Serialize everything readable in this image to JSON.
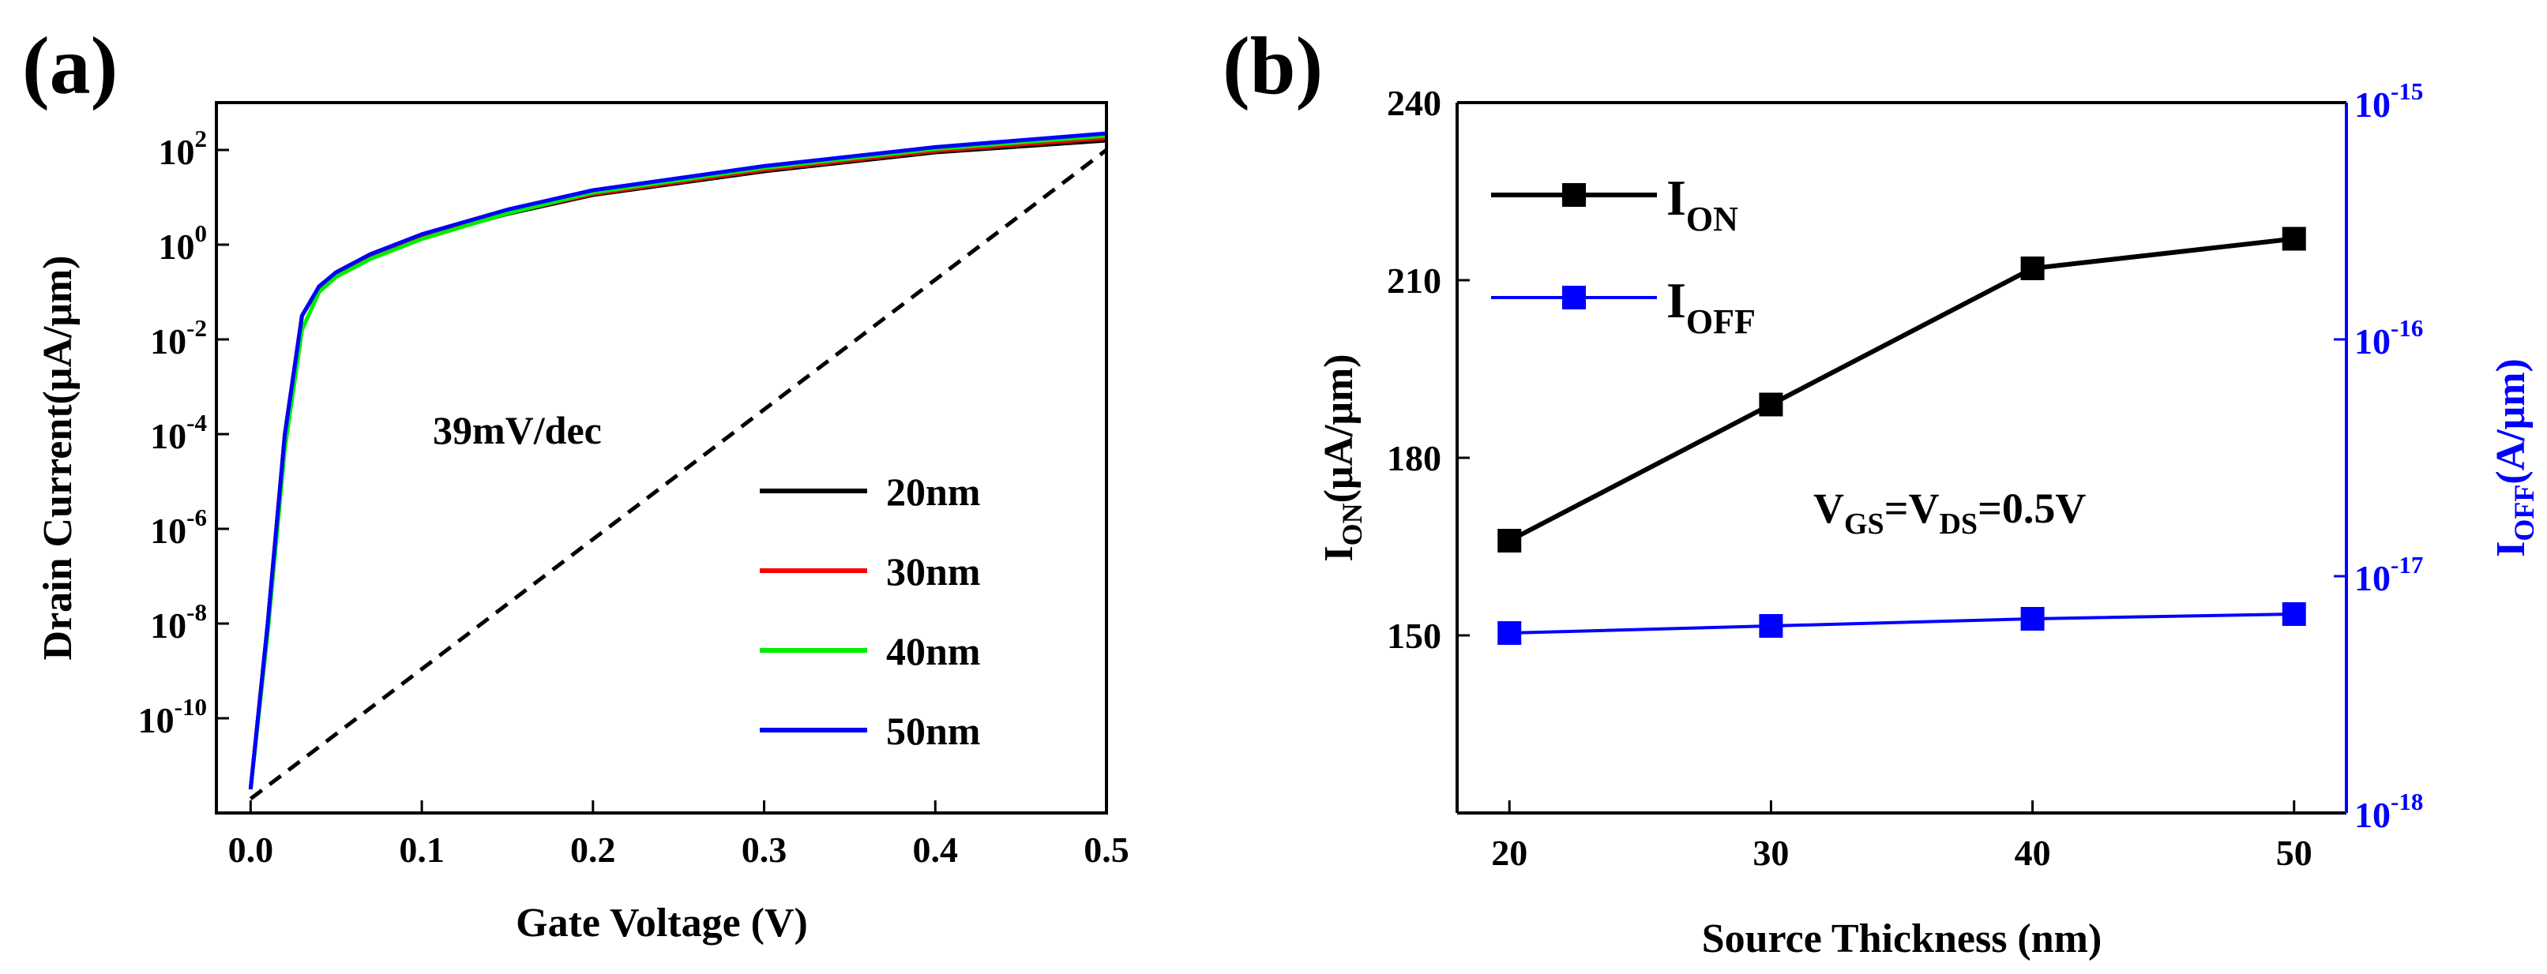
{
  "chart_data": [
    {
      "panel_label": "(a)",
      "type": "line",
      "title": "",
      "xlabel": "Gate Voltage (V)",
      "ylabel": "Drain Current(μA/μm)",
      "y_scale": "log",
      "xlim": [
        -0.02,
        0.5
      ],
      "ylim_log10": [
        -12,
        3
      ],
      "xticks": [
        {
          "value": 0.0,
          "label": "0.0"
        },
        {
          "value": 0.1,
          "label": "0.1"
        },
        {
          "value": 0.2,
          "label": "0.2"
        },
        {
          "value": 0.3,
          "label": "0.3"
        },
        {
          "value": 0.4,
          "label": "0.4"
        },
        {
          "value": 0.5,
          "label": "0.5"
        }
      ],
      "yticks": [
        {
          "exp": 2,
          "base": "10",
          "sup": "2"
        },
        {
          "exp": 0,
          "base": "10",
          "sup": "0"
        },
        {
          "exp": -2,
          "base": "10",
          "sup": "-2"
        },
        {
          "exp": -4,
          "base": "10",
          "sup": "-4"
        },
        {
          "exp": -6,
          "base": "10",
          "sup": "-6"
        },
        {
          "exp": -8,
          "base": "10",
          "sup": "-8"
        },
        {
          "exp": -10,
          "base": "10",
          "sup": "-10"
        }
      ],
      "annotation": "39mV/dec",
      "reference_line": {
        "style": "dashed",
        "x": [
          0.0,
          0.5
        ],
        "log10_y": [
          -11.7,
          2.0
        ]
      },
      "legend_position": "center-right",
      "series": [
        {
          "name": "20nm",
          "color": "#000000",
          "x": [
            0.0,
            0.01,
            0.02,
            0.03,
            0.04,
            0.05,
            0.07,
            0.1,
            0.15,
            0.2,
            0.3,
            0.4,
            0.5
          ],
          "log10_y": [
            -11.5,
            -8.0,
            -4.0,
            -1.5,
            -0.9,
            -0.6,
            -0.25,
            0.15,
            0.65,
            1.05,
            1.55,
            1.95,
            2.2
          ]
        },
        {
          "name": "30nm",
          "color": "#ff0000",
          "x": [
            0.0,
            0.01,
            0.02,
            0.03,
            0.04,
            0.05,
            0.07,
            0.1,
            0.15,
            0.2,
            0.3,
            0.4,
            0.5
          ],
          "log10_y": [
            -11.5,
            -8.0,
            -4.0,
            -1.5,
            -0.9,
            -0.6,
            -0.25,
            0.17,
            0.67,
            1.07,
            1.58,
            1.98,
            2.25
          ]
        },
        {
          "name": "40nm",
          "color": "#00ee00",
          "x": [
            0.0,
            0.01,
            0.02,
            0.03,
            0.04,
            0.05,
            0.07,
            0.1,
            0.15,
            0.2,
            0.3,
            0.4,
            0.5
          ],
          "log10_y": [
            -11.5,
            -8.2,
            -4.3,
            -1.8,
            -1.0,
            -0.68,
            -0.3,
            0.12,
            0.66,
            1.1,
            1.62,
            2.02,
            2.3
          ]
        },
        {
          "name": "50nm",
          "color": "#0000ff",
          "x": [
            0.0,
            0.01,
            0.02,
            0.03,
            0.04,
            0.05,
            0.07,
            0.1,
            0.15,
            0.2,
            0.3,
            0.4,
            0.5
          ],
          "log10_y": [
            -11.5,
            -8.0,
            -4.0,
            -1.5,
            -0.88,
            -0.58,
            -0.2,
            0.22,
            0.74,
            1.15,
            1.66,
            2.06,
            2.35
          ]
        }
      ]
    },
    {
      "panel_label": "(b)",
      "type": "line",
      "title": "",
      "xlabel": "Source Thickness (nm)",
      "x": [
        20,
        30,
        40,
        50
      ],
      "xlim": [
        18,
        52
      ],
      "xticks": [
        20,
        30,
        40,
        50
      ],
      "annotation": {
        "V1": "V",
        "V1_sub": "GS",
        "eq1": "=V",
        "V2_sub": "DS",
        "eq2": "=0.5V"
      },
      "left_axis": {
        "label_main": "I",
        "label_sub": "ON",
        "label_rest": "(μA/μm)",
        "ylim": [
          120,
          240
        ],
        "ticks": [
          150,
          180,
          210,
          240
        ],
        "color": "#000000"
      },
      "right_axis": {
        "label_main": "I",
        "label_sub": "OFF",
        "label_rest": "(A/μm)",
        "scale": "log",
        "ylim_log10": [
          -18,
          -15
        ],
        "ticks": [
          {
            "exp": -15,
            "base": "10",
            "sup": "-15"
          },
          {
            "exp": -16,
            "base": "10",
            "sup": "-16"
          },
          {
            "exp": -17,
            "base": "10",
            "sup": "-17"
          },
          {
            "exp": -18,
            "base": "10",
            "sup": "-18"
          }
        ],
        "color": "#0000ff"
      },
      "legend_position": "top-left",
      "series": [
        {
          "name_main": "I",
          "name_sub": "ON",
          "axis": "left",
          "color": "#000000",
          "marker": "square",
          "values": [
            166,
            189,
            212,
            217
          ]
        },
        {
          "name_main": "I",
          "name_sub": "OFF",
          "axis": "right",
          "color": "#0000ff",
          "marker": "square",
          "log10_values": [
            -17.24,
            -17.21,
            -17.18,
            -17.16
          ]
        }
      ]
    }
  ]
}
